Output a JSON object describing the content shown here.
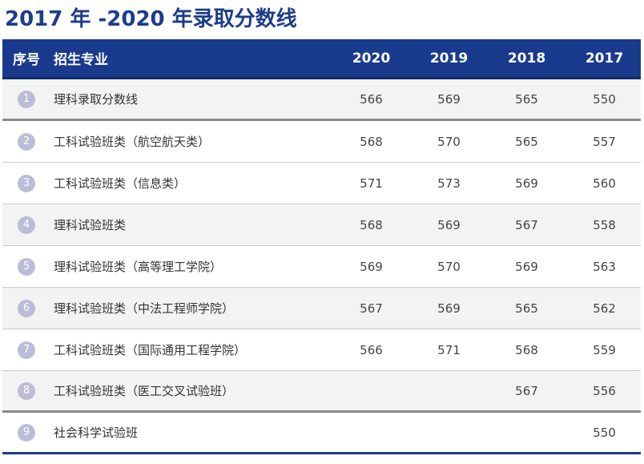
{
  "title": "2017 年 -2020 年录取分数线",
  "header": {
    "index": "序号",
    "major": "招生专业",
    "years": [
      "2020",
      "2019",
      "2018",
      "2017"
    ]
  },
  "rows": [
    {
      "index": "1",
      "major": "理科录取分数线",
      "scores": [
        "566",
        "569",
        "565",
        "550"
      ]
    },
    {
      "index": "2",
      "major": "工科试验班类（航空航天类）",
      "scores": [
        "568",
        "570",
        "565",
        "557"
      ]
    },
    {
      "index": "3",
      "major": "工科试验班类（信息类）",
      "scores": [
        "571",
        "573",
        "569",
        "560"
      ]
    },
    {
      "index": "4",
      "major": "理科试验班类",
      "scores": [
        "568",
        "569",
        "567",
        "558"
      ]
    },
    {
      "index": "5",
      "major": "理科试验班类（高等理工学院）",
      "scores": [
        "569",
        "570",
        "569",
        "563"
      ]
    },
    {
      "index": "6",
      "major": "理科试验班类（中法工程师学院）",
      "scores": [
        "567",
        "569",
        "565",
        "562"
      ]
    },
    {
      "index": "7",
      "major": "工科试验班类（国际通用工程学院）",
      "scores": [
        "566",
        "571",
        "568",
        "559"
      ]
    },
    {
      "index": "8",
      "major": "工科试验班类（医工交叉试验班）",
      "scores": [
        "",
        "",
        "567",
        "556"
      ]
    },
    {
      "index": "9",
      "major": "社会科学试验班",
      "scores": [
        "",
        "",
        "",
        "550"
      ]
    }
  ],
  "colors": {
    "header_bg": "#1a3a8e",
    "title": "#1d3c8a",
    "badge": "#bcbcd6",
    "alt_row": "#f2f3f2"
  }
}
